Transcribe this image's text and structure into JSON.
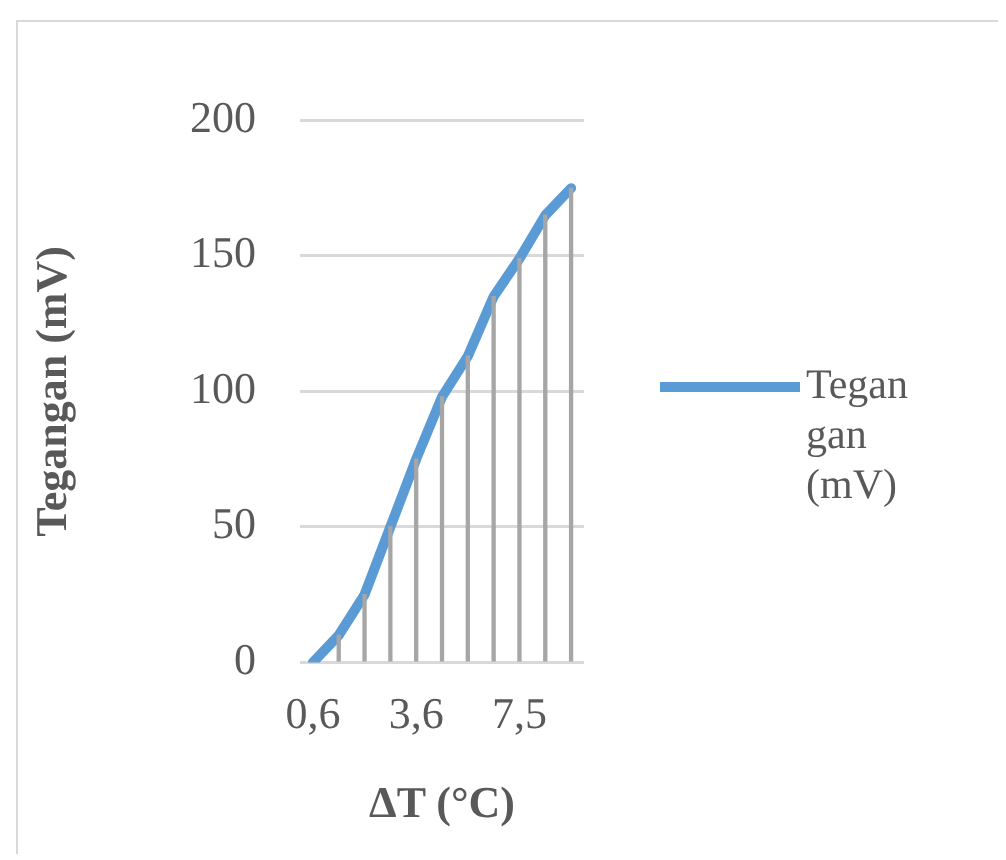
{
  "chart_data": {
    "type": "line",
    "xlabel": "ΔT (°C)",
    "ylabel": "Tegangan (mV)",
    "categories": [
      "0,6",
      null,
      null,
      null,
      "3,6",
      null,
      null,
      null,
      "7,5",
      null,
      null
    ],
    "series": [
      {
        "type": "bar",
        "color": "#a6a6a6",
        "values": [
          0,
          10,
          25,
          50,
          75,
          98,
          113,
          135,
          149,
          165,
          175
        ]
      },
      {
        "name": "Tegangan (mV)",
        "color": "#5b9bd5",
        "values": [
          0,
          10,
          25,
          50,
          75,
          98,
          113,
          135,
          149,
          165,
          175
        ]
      }
    ],
    "ylim": [
      0,
      200
    ],
    "yticks": [
      0,
      50,
      100,
      150,
      200
    ],
    "grid": "y",
    "legend": "right",
    "marker": "none",
    "line_style": "solid"
  }
}
